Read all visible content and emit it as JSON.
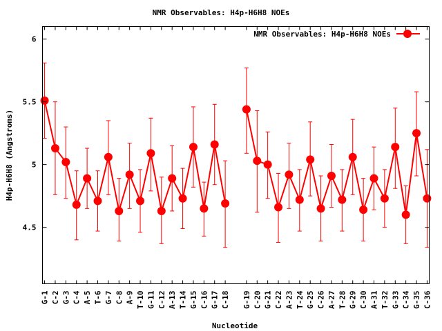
{
  "chart_data": {
    "type": "line",
    "title": "NMR Observables: H4p-H6H8 NOEs",
    "xlabel": "Nucleotide",
    "ylabel": "H4p-H6H8 (Angstroms)",
    "ylim": [
      4.05,
      6.1
    ],
    "xlim": [
      0.8,
      37.2
    ],
    "yticks": [
      4.5,
      5,
      5.5,
      6
    ],
    "ytick_labels": [
      "4.5",
      "5",
      "5.5",
      "6"
    ],
    "grid": false,
    "legend": {
      "position": "top-right",
      "entries": [
        "NMR Observables: H4p-H6H8 NOEs"
      ]
    },
    "series_color": "#ff0000",
    "series": [
      {
        "name": "NMR Observables: H4p-H6H8 NOEs",
        "segments": [
          [
            {
              "x": 1,
              "label": "G-1",
              "y": 5.51,
              "low": 5.21,
              "high": 5.81
            },
            {
              "x": 2,
              "label": "C-2",
              "y": 5.13,
              "low": 4.76,
              "high": 5.5
            },
            {
              "x": 3,
              "label": "G-3",
              "y": 5.02,
              "low": 4.73,
              "high": 5.3
            },
            {
              "x": 4,
              "label": "C-4",
              "y": 4.68,
              "low": 4.4,
              "high": 4.95
            },
            {
              "x": 5,
              "label": "A-5",
              "y": 4.89,
              "low": 4.65,
              "high": 5.13
            },
            {
              "x": 6,
              "label": "T-6",
              "y": 4.71,
              "low": 4.47,
              "high": 4.95
            },
            {
              "x": 7,
              "label": "G-7",
              "y": 5.06,
              "low": 4.76,
              "high": 5.35
            },
            {
              "x": 8,
              "label": "C-8",
              "y": 4.63,
              "low": 4.39,
              "high": 4.89
            },
            {
              "x": 9,
              "label": "A-9",
              "y": 4.92,
              "low": 4.65,
              "high": 5.17
            },
            {
              "x": 10,
              "label": "T-10",
              "y": 4.71,
              "low": 4.46,
              "high": 4.96
            },
            {
              "x": 11,
              "label": "G-11",
              "y": 5.09,
              "low": 4.79,
              "high": 5.37
            },
            {
              "x": 12,
              "label": "C-12",
              "y": 4.63,
              "low": 4.37,
              "high": 4.9
            },
            {
              "x": 13,
              "label": "A-13",
              "y": 4.89,
              "low": 4.63,
              "high": 5.15
            },
            {
              "x": 14,
              "label": "T-14",
              "y": 4.73,
              "low": 4.49,
              "high": 4.97
            },
            {
              "x": 15,
              "label": "G-15",
              "y": 5.14,
              "low": 4.82,
              "high": 5.46
            },
            {
              "x": 16,
              "label": "C-16",
              "y": 4.65,
              "low": 4.43,
              "high": 4.86
            },
            {
              "x": 17,
              "label": "G-17",
              "y": 5.16,
              "low": 4.84,
              "high": 5.48
            },
            {
              "x": 18,
              "label": "C-18",
              "y": 4.69,
              "low": 4.34,
              "high": 5.03
            }
          ],
          [
            {
              "x": 20,
              "label": "G-19",
              "y": 5.44,
              "low": 5.09,
              "high": 5.77
            },
            {
              "x": 21,
              "label": "C-20",
              "y": 5.03,
              "low": 4.62,
              "high": 5.43
            },
            {
              "x": 22,
              "label": "G-21",
              "y": 5.0,
              "low": 4.73,
              "high": 5.26
            },
            {
              "x": 23,
              "label": "C-22",
              "y": 4.66,
              "low": 4.38,
              "high": 4.93
            },
            {
              "x": 24,
              "label": "A-23",
              "y": 4.92,
              "low": 4.65,
              "high": 5.17
            },
            {
              "x": 25,
              "label": "T-24",
              "y": 4.72,
              "low": 4.47,
              "high": 4.96
            },
            {
              "x": 26,
              "label": "G-25",
              "y": 5.04,
              "low": 4.75,
              "high": 5.34
            },
            {
              "x": 27,
              "label": "C-26",
              "y": 4.65,
              "low": 4.39,
              "high": 4.91
            },
            {
              "x": 28,
              "label": "A-27",
              "y": 4.91,
              "low": 4.66,
              "high": 5.16
            },
            {
              "x": 29,
              "label": "T-28",
              "y": 4.72,
              "low": 4.47,
              "high": 4.96
            },
            {
              "x": 30,
              "label": "G-29",
              "y": 5.06,
              "low": 4.76,
              "high": 5.36
            },
            {
              "x": 31,
              "label": "C-30",
              "y": 4.64,
              "low": 4.39,
              "high": 4.89
            },
            {
              "x": 32,
              "label": "A-31",
              "y": 4.89,
              "low": 4.64,
              "high": 5.14
            },
            {
              "x": 33,
              "label": "T-32",
              "y": 4.73,
              "low": 4.5,
              "high": 4.96
            },
            {
              "x": 34,
              "label": "G-33",
              "y": 5.14,
              "low": 4.81,
              "high": 5.45
            },
            {
              "x": 35,
              "label": "C-34",
              "y": 4.6,
              "low": 4.37,
              "high": 4.83
            },
            {
              "x": 36,
              "label": "G-35",
              "y": 5.25,
              "low": 4.91,
              "high": 5.58
            },
            {
              "x": 37,
              "label": "C-36",
              "y": 4.73,
              "low": 4.34,
              "high": 5.12
            }
          ]
        ]
      }
    ]
  }
}
